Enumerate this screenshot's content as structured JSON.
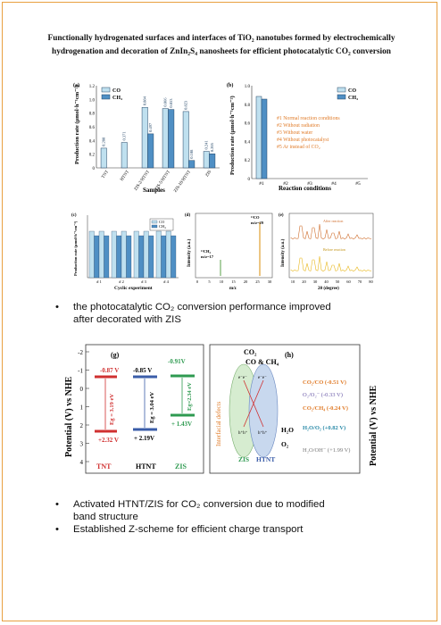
{
  "title_line1": "Functionally hydrogenated surfaces and interfaces of TiO₂ nanotubes formed by electrochemically",
  "title_line2": "hydrogenation and decoration of ZnIn₂S₄ nanosheets for efficient photocatalytic CO₂ conversion",
  "fig_a": {
    "label": "(a)",
    "ylabel": "Production rate (μmol·h⁻¹cm⁻²)",
    "xlabel": "Samples",
    "legend": [
      "CO",
      "CH₄"
    ],
    "categories": [
      "TNT",
      "HTNT",
      "ZIS-2/HTNT",
      "ZIS-5/HTNT",
      "ZIS-10/HTNT",
      "ZIS"
    ],
    "co": [
      0.288,
      0.371,
      0.884,
      0.866,
      0.823,
      0.241
    ],
    "ch4": [
      0,
      0,
      0.497,
      0.853,
      0.108,
      0.205
    ],
    "co_labels": [
      "0.288",
      "0.371",
      "0.884",
      "0.866",
      "0.823",
      "0.241"
    ],
    "ch4_labels": [
      "",
      "",
      "0.497",
      "0.853",
      "0.108",
      "0.205"
    ],
    "yticks": [
      "0",
      "0.2",
      "0.4",
      "0.6",
      "0.8",
      "1.0",
      "1.2"
    ]
  },
  "fig_b": {
    "label": "(b)",
    "ylabel": "Production rate (μmol·h⁻¹cm⁻²)",
    "xlabel": "Reaction conditions",
    "legend": [
      "CO",
      "CH₄"
    ],
    "categories": [
      "#1",
      "#2",
      "#3",
      "#4",
      "#5"
    ],
    "yticks": [
      "0",
      "0.2",
      "0.4",
      "0.6",
      "0.8",
      "1.0"
    ],
    "notes": [
      "#1 Normal reaction conditions",
      "#2 Without radiation",
      "#3 Without water",
      "#4 Without photocatalyst",
      "#5 Ar instead of CO₂"
    ]
  },
  "fig_c": {
    "label": "(c)",
    "ylabel": "Production rate (μmol·h⁻¹cm⁻²)",
    "xlabel": "Cyclic experiment",
    "legend": [
      "CO",
      "CH₄"
    ],
    "categories": [
      "# 1",
      "# 2",
      "# 3",
      "# 4"
    ]
  },
  "fig_d": {
    "label": "(d)",
    "ylabel": "Intensity (a.u.)",
    "xlabel": "m/z",
    "peak1": "¹³CH₄",
    "peak1b": "m/z=17",
    "peak2": "¹³CO",
    "peak2b": "m/z=29",
    "xticks": [
      "0",
      "5",
      "10",
      "15",
      "20",
      "25",
      "30"
    ]
  },
  "fig_e": {
    "label": "(e)",
    "ylabel": "Intensity (a.u.)",
    "xlabel": "2θ (degree)",
    "after": "After reaction",
    "before": "Before reaction",
    "xticks": [
      "10",
      "20",
      "30",
      "40",
      "50",
      "60",
      "70",
      "80"
    ]
  },
  "bullet1_l1": "the photocatalytic CO₂ conversion performance improved",
  "bullet1_l2": "after decorated with ZIS",
  "fig_g": {
    "label": "(g)",
    "ylabel": "Potential (V) vs NHE",
    "yticks": [
      "-2",
      "-1",
      "0",
      "1",
      "2",
      "3",
      "4"
    ],
    "names": [
      "TNT",
      "HTNT",
      "ZIS"
    ],
    "cb": [
      "-0.87 V",
      "-0.85 V",
      "-0.91V"
    ],
    "vb": [
      "+2.32 V",
      "+ 2.19V",
      "+ 1.43V"
    ],
    "eg": [
      "Eg = 3.19 eV",
      "Eg = 3.04 eV",
      "Eg=2.34 eV"
    ]
  },
  "fig_h": {
    "label": "(h)",
    "ylabel": "Potential (V) vs NHE",
    "co2": "CO₂",
    "products": "CO & CH₄",
    "defects": "Interfacial defects",
    "zis": "ZIS",
    "htnt": "HTNT",
    "h2o": "H₂O",
    "o2": "O₂",
    "levels": [
      "CO₂/CO (-0.51 V)",
      "O₂/O₂⁻ (-0.33 V)",
      "CO₂/CH₄ (-0.24 V)",
      "H₂O/O₂ (+0.82 V)",
      "H₂O/OH⁻ (+1.99 V)"
    ]
  },
  "bullet2_l1": "Activated HTNT/ZIS for CO₂ conversion due to modified",
  "bullet2_l2": "band structure",
  "bullet3": "Established Z-scheme for efficient charge transport"
}
